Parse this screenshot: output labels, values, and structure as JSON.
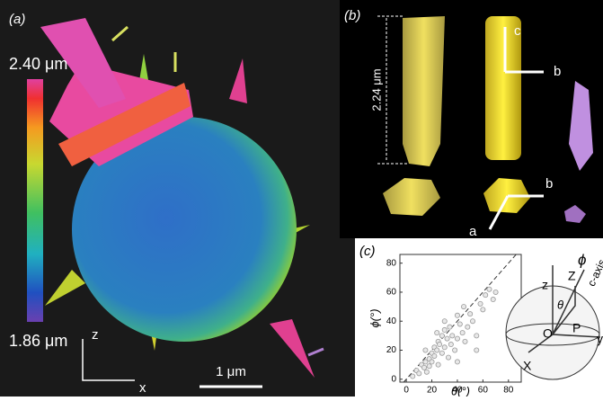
{
  "panel_a": {
    "label": "(a)",
    "colorbar_max": "2.40 μm",
    "colorbar_min": "1.86 μm",
    "axis_z": "z",
    "axis_x": "x",
    "scale_bar": "1 μm"
  },
  "panel_b": {
    "label": "(b)",
    "length": "2.24 μm",
    "axis_c": "c",
    "axis_b_top": "b",
    "axis_b_bottom": "b",
    "axis_a": "a"
  },
  "panel_c_diagram": {
    "z_lower": "z",
    "z_upper": "Z",
    "phi": "ϕ",
    "theta": "θ",
    "p": "P",
    "o": "O",
    "x": "X",
    "c_axis": "c-axis",
    "y": "y"
  },
  "chart_data": {
    "type": "scatter",
    "label": "(c)",
    "x_label": "θ(°)",
    "y_label": "ϕ(°)",
    "x": [
      5,
      8,
      10,
      12,
      14,
      15,
      16,
      18,
      18,
      20,
      20,
      22,
      22,
      24,
      25,
      25,
      26,
      28,
      28,
      30,
      30,
      32,
      33,
      34,
      35,
      36,
      38,
      40,
      40,
      42,
      44,
      45,
      48,
      50,
      52,
      55,
      58,
      60,
      62,
      65,
      68,
      70,
      30,
      24,
      15,
      40,
      46,
      55
    ],
    "values": [
      2,
      6,
      4,
      10,
      8,
      12,
      5,
      14,
      9,
      18,
      12,
      16,
      22,
      20,
      10,
      26,
      24,
      18,
      30,
      22,
      34,
      28,
      15,
      36,
      24,
      30,
      20,
      28,
      44,
      38,
      32,
      50,
      36,
      45,
      40,
      30,
      52,
      48,
      58,
      62,
      55,
      60,
      40,
      32,
      20,
      12,
      26,
      20
    ],
    "color": "#9a9a9a",
    "xlim": [
      -5,
      90
    ],
    "ylim": [
      -2,
      86
    ],
    "xticks": [
      0,
      20,
      40,
      60,
      80
    ],
    "yticks": [
      0,
      20,
      40,
      60,
      80
    ]
  }
}
